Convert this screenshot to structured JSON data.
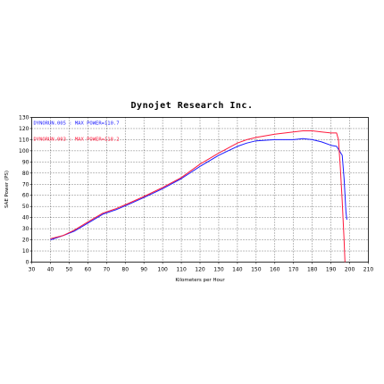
{
  "chart_data": {
    "type": "line",
    "title": "Dynojet  Research  Inc.",
    "xlabel": "Kilometers per Hour",
    "ylabel": "SAE Power (PS)",
    "xlim": [
      30,
      210
    ],
    "ylim": [
      0,
      130
    ],
    "x_ticks": [
      30,
      40,
      50,
      60,
      70,
      80,
      90,
      100,
      110,
      120,
      130,
      140,
      150,
      160,
      170,
      180,
      190,
      200,
      210
    ],
    "y_ticks": [
      0,
      10,
      20,
      30,
      40,
      50,
      60,
      70,
      80,
      90,
      100,
      110,
      120,
      130
    ],
    "grid": true,
    "legend_position": "top-left",
    "series": [
      {
        "name": "DYNORUN.005 : MAX POWER=110.7",
        "color": "#1a1aff",
        "x": [
          40,
          47,
          53,
          60,
          68,
          75,
          82,
          90,
          100,
          110,
          120,
          130,
          140,
          145,
          150,
          160,
          170,
          175,
          180,
          185,
          190,
          193,
          196,
          197,
          198,
          198.5
        ],
        "y": [
          20,
          24,
          28,
          35,
          43,
          47,
          52,
          58,
          66,
          75,
          86,
          96,
          104,
          107,
          109,
          110,
          110,
          111,
          110,
          108,
          105,
          104,
          96,
          75,
          45,
          38
        ]
      },
      {
        "name": "DYNORUN.003 : MAX POWER=118.2",
        "color": "#ff1a3c",
        "x": [
          40,
          47,
          53,
          60,
          68,
          75,
          82,
          90,
          100,
          110,
          120,
          130,
          140,
          145,
          150,
          160,
          170,
          175,
          180,
          185,
          190,
          193,
          194,
          195,
          196,
          197,
          197.5
        ],
        "y": [
          21,
          24,
          29,
          36,
          44,
          48,
          53,
          59,
          67,
          76,
          88,
          98,
          107,
          110,
          112,
          115,
          117,
          118,
          118,
          117,
          116,
          116,
          110,
          85,
          55,
          20,
          0
        ]
      }
    ]
  }
}
